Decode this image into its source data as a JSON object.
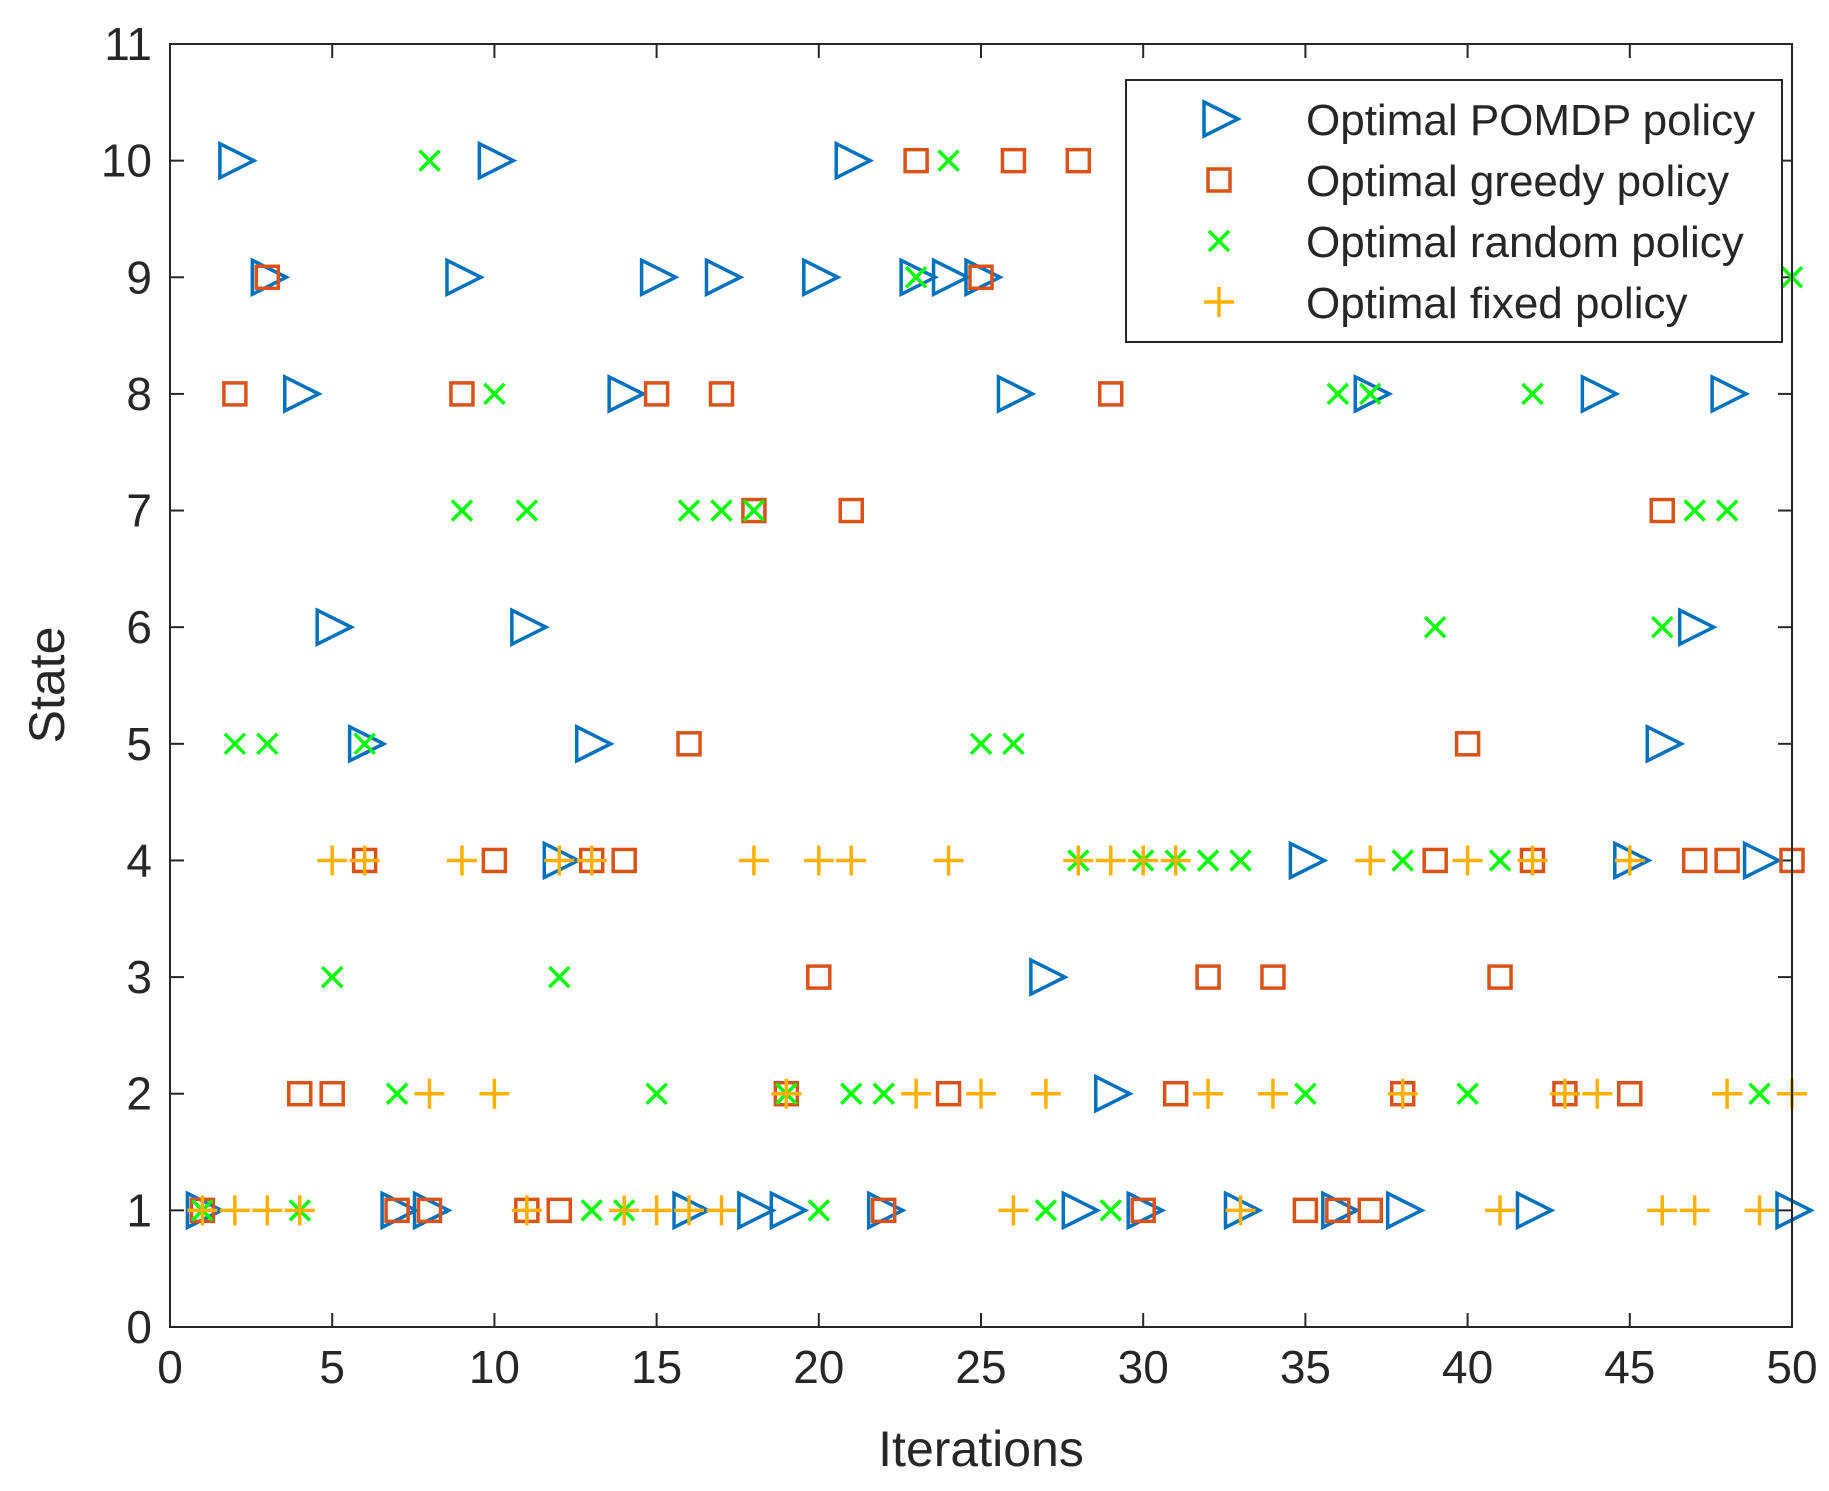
{
  "chart_data": {
    "type": "scatter",
    "title": "",
    "xlabel": "Iterations",
    "ylabel": "State",
    "xlim": [
      0,
      50
    ],
    "ylim": [
      0,
      11
    ],
    "xticks": [
      0,
      5,
      10,
      15,
      20,
      25,
      30,
      35,
      40,
      45,
      50
    ],
    "yticks": [
      0,
      1,
      2,
      3,
      4,
      5,
      6,
      7,
      8,
      9,
      10,
      11
    ],
    "grid": false,
    "legend_position": "top-right",
    "series": [
      {
        "name": "Optimal POMDP policy",
        "marker": "triangle-right",
        "color": "#0072BD",
        "points": [
          [
            1,
            1
          ],
          [
            2,
            10
          ],
          [
            3,
            9
          ],
          [
            4,
            8
          ],
          [
            5,
            6
          ],
          [
            6,
            5
          ],
          [
            7,
            1
          ],
          [
            8,
            1
          ],
          [
            9,
            9
          ],
          [
            10,
            10
          ],
          [
            11,
            6
          ],
          [
            12,
            4
          ],
          [
            13,
            5
          ],
          [
            14,
            8
          ],
          [
            15,
            9
          ],
          [
            16,
            1
          ],
          [
            17,
            9
          ],
          [
            18,
            1
          ],
          [
            19,
            1
          ],
          [
            20,
            9
          ],
          [
            21,
            10
          ],
          [
            22,
            1
          ],
          [
            23,
            9
          ],
          [
            24,
            9
          ],
          [
            25,
            9
          ],
          [
            26,
            8
          ],
          [
            27,
            3
          ],
          [
            28,
            1
          ],
          [
            29,
            2
          ],
          [
            30,
            1
          ],
          [
            33,
            1
          ],
          [
            35,
            4
          ],
          [
            36,
            1
          ],
          [
            37,
            8
          ],
          [
            38,
            1
          ],
          [
            42,
            1
          ],
          [
            44,
            8
          ],
          [
            45,
            4
          ],
          [
            46,
            5
          ],
          [
            47,
            6
          ],
          [
            48,
            8
          ],
          [
            49,
            4
          ],
          [
            50,
            1
          ]
        ]
      },
      {
        "name": "Optimal greedy policy",
        "marker": "square",
        "color": "#D95319",
        "points": [
          [
            1,
            1
          ],
          [
            2,
            8
          ],
          [
            3,
            9
          ],
          [
            4,
            2
          ],
          [
            5,
            2
          ],
          [
            6,
            4
          ],
          [
            7,
            1
          ],
          [
            8,
            1
          ],
          [
            9,
            8
          ],
          [
            10,
            4
          ],
          [
            11,
            1
          ],
          [
            12,
            1
          ],
          [
            13,
            4
          ],
          [
            14,
            4
          ],
          [
            15,
            8
          ],
          [
            16,
            5
          ],
          [
            17,
            8
          ],
          [
            18,
            7
          ],
          [
            19,
            2
          ],
          [
            20,
            3
          ],
          [
            21,
            7
          ],
          [
            22,
            1
          ],
          [
            23,
            10
          ],
          [
            24,
            2
          ],
          [
            25,
            9
          ],
          [
            26,
            10
          ],
          [
            28,
            10
          ],
          [
            29,
            8
          ],
          [
            30,
            1
          ],
          [
            31,
            2
          ],
          [
            32,
            3
          ],
          [
            34,
            3
          ],
          [
            35,
            1
          ],
          [
            36,
            1
          ],
          [
            37,
            1
          ],
          [
            38,
            2
          ],
          [
            39,
            4
          ],
          [
            40,
            5
          ],
          [
            41,
            3
          ],
          [
            42,
            4
          ],
          [
            43,
            2
          ],
          [
            45,
            2
          ],
          [
            46,
            7
          ],
          [
            47,
            4
          ],
          [
            48,
            4
          ],
          [
            50,
            4
          ]
        ]
      },
      {
        "name": "Optimal random policy",
        "marker": "x",
        "color": "#00FF00",
        "points": [
          [
            1,
            1
          ],
          [
            2,
            5
          ],
          [
            3,
            5
          ],
          [
            4,
            1
          ],
          [
            5,
            3
          ],
          [
            6,
            5
          ],
          [
            7,
            2
          ],
          [
            8,
            10
          ],
          [
            9,
            7
          ],
          [
            10,
            8
          ],
          [
            11,
            7
          ],
          [
            12,
            3
          ],
          [
            13,
            1
          ],
          [
            14,
            1
          ],
          [
            15,
            2
          ],
          [
            16,
            7
          ],
          [
            17,
            7
          ],
          [
            18,
            7
          ],
          [
            19,
            2
          ],
          [
            20,
            1
          ],
          [
            21,
            2
          ],
          [
            22,
            2
          ],
          [
            23,
            9
          ],
          [
            24,
            10
          ],
          [
            25,
            5
          ],
          [
            26,
            5
          ],
          [
            27,
            1
          ],
          [
            28,
            4
          ],
          [
            29,
            1
          ],
          [
            30,
            4
          ],
          [
            31,
            4
          ],
          [
            32,
            4
          ],
          [
            33,
            4
          ],
          [
            35,
            2
          ],
          [
            36,
            8
          ],
          [
            37,
            8
          ],
          [
            38,
            4
          ],
          [
            39,
            6
          ],
          [
            40,
            2
          ],
          [
            41,
            4
          ],
          [
            42,
            8
          ],
          [
            46,
            6
          ],
          [
            47,
            7
          ],
          [
            48,
            7
          ],
          [
            49,
            2
          ],
          [
            50,
            9
          ]
        ]
      },
      {
        "name": "Optimal fixed policy",
        "marker": "plus",
        "color": "#FFB000",
        "points": [
          [
            1,
            1
          ],
          [
            2,
            1
          ],
          [
            3,
            1
          ],
          [
            4,
            1
          ],
          [
            5,
            4
          ],
          [
            6,
            4
          ],
          [
            8,
            2
          ],
          [
            9,
            4
          ],
          [
            10,
            2
          ],
          [
            11,
            1
          ],
          [
            12,
            4
          ],
          [
            13,
            4
          ],
          [
            14,
            1
          ],
          [
            15,
            1
          ],
          [
            16,
            1
          ],
          [
            17,
            1
          ],
          [
            18,
            4
          ],
          [
            19,
            2
          ],
          [
            20,
            4
          ],
          [
            21,
            4
          ],
          [
            23,
            2
          ],
          [
            24,
            4
          ],
          [
            25,
            2
          ],
          [
            26,
            1
          ],
          [
            27,
            2
          ],
          [
            28,
            4
          ],
          [
            29,
            4
          ],
          [
            30,
            4
          ],
          [
            31,
            4
          ],
          [
            32,
            2
          ],
          [
            33,
            1
          ],
          [
            34,
            2
          ],
          [
            37,
            4
          ],
          [
            38,
            2
          ],
          [
            40,
            4
          ],
          [
            41,
            1
          ],
          [
            42,
            4
          ],
          [
            43,
            2
          ],
          [
            44,
            2
          ],
          [
            45,
            4
          ],
          [
            46,
            1
          ],
          [
            47,
            1
          ],
          [
            48,
            2
          ],
          [
            49,
            1
          ],
          [
            50,
            2
          ]
        ]
      }
    ]
  }
}
